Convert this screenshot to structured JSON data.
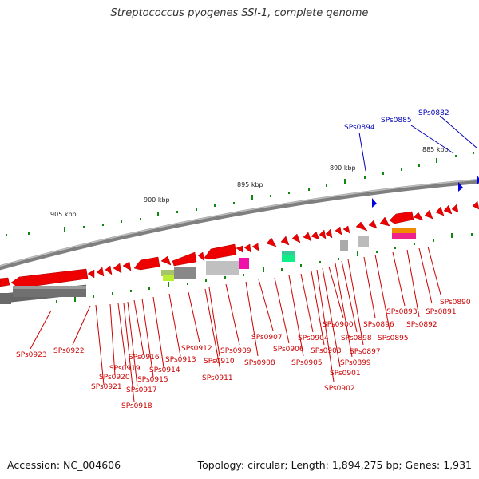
{
  "title": "Streptococcus pyogenes SSI-1, complete genome",
  "footer": {
    "accession": "Accession: NC_004606",
    "topology": "Topology: circular; Length: 1,894,275 bp; Genes: 1,931"
  },
  "colors": {
    "gene_red": "#ee0000",
    "label_red": "#cc0000",
    "label_blue": "#0000bb",
    "backbone": "#888888",
    "tick_green": "#118811"
  },
  "scale_labels": [
    "885 kbp",
    "890 kbp",
    "895 kbp",
    "900 kbp",
    "905 kbp"
  ],
  "top_labels": [
    "SPs0882",
    "SPs0885",
    "SPs0894"
  ],
  "bottom_labels": [
    "SPs0890",
    "SPs0891",
    "SPs0892",
    "SPs0893",
    "SPs0895",
    "SPs0896",
    "SPs0897",
    "SPs0898",
    "SPs0899",
    "SPs0900",
    "SPs0901",
    "SPs0902",
    "SPs0903",
    "SPs0904",
    "SPs0905",
    "SPs0906",
    "SPs0907",
    "SPs0908",
    "SPs0909",
    "SPs0910",
    "SPs0911",
    "SPs0912",
    "SPs0913",
    "SPs0914",
    "SPs0915",
    "SPs0916",
    "SPs0917",
    "SPs0918",
    "SPs0919",
    "SPs0920",
    "SPs0921",
    "SPs0922",
    "SPs0923"
  ]
}
